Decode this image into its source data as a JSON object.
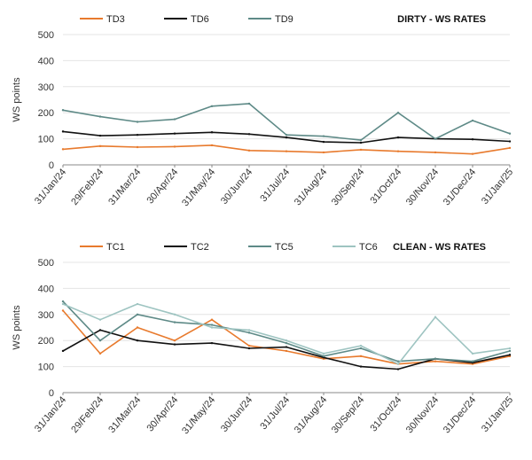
{
  "chart_data": [
    {
      "type": "line",
      "title": "DIRTY - WS RATES",
      "ylabel": "WS points",
      "ylim": [
        0,
        500
      ],
      "yticks": [
        0,
        100,
        200,
        300,
        400,
        500
      ],
      "grid": true,
      "legend_position": "top",
      "x_dates": [
        "31/Jan/24",
        "29/Feb/24",
        "31/Mar/24",
        "30/Apr/24",
        "31/May/24",
        "30/Jun/24",
        "31/Jul/24",
        "31/Aug/24",
        "30/Sep/24",
        "31/Oct/24",
        "30/Nov/24",
        "31/Dec/24",
        "31/Jan/25"
      ],
      "xtick_labels": [
        "31/Jan/24",
        "29/Feb/24",
        "31/Mar/24",
        "30/Apr/24",
        "31/May/24",
        "30/Jun/24",
        "31/Jul/24",
        "31/Aug/24",
        "30/Sep/24",
        "31/Oct/24",
        "30/Nov/24",
        "31/Dec/24",
        "31/Jan/25"
      ],
      "series": [
        {
          "name": "TD3",
          "color": "#e87a2d",
          "values": [
            60,
            72,
            68,
            70,
            75,
            55,
            52,
            48,
            58,
            52,
            48,
            42,
            65
          ]
        },
        {
          "name": "TD6",
          "color": "#111111",
          "values": [
            128,
            112,
            115,
            120,
            125,
            118,
            105,
            88,
            85,
            105,
            100,
            98,
            90
          ]
        },
        {
          "name": "TD9",
          "color": "#5e8a87",
          "values": [
            210,
            185,
            165,
            175,
            225,
            235,
            115,
            110,
            95,
            200,
            100,
            170,
            120
          ]
        }
      ]
    },
    {
      "type": "line",
      "title": "CLEAN - WS RATES",
      "ylabel": "WS points",
      "ylim": [
        0,
        500
      ],
      "yticks": [
        0,
        100,
        200,
        300,
        400,
        500
      ],
      "grid": true,
      "legend_position": "top",
      "x_dates": [
        "31/Jan/24",
        "29/Feb/24",
        "31/Mar/24",
        "30/Apr/24",
        "31/May/24",
        "30/Jun/24",
        "31/Jul/24",
        "31/Aug/24",
        "30/Sep/24",
        "31/Oct/24",
        "30/Nov/24",
        "31/Dec/24",
        "31/Jan/25"
      ],
      "xtick_labels": [
        "31/Jan/24",
        "29/Feb/24",
        "31/Mar/24",
        "30/Apr/24",
        "31/May/24",
        "30/Jun/24",
        "31/Jul/24",
        "31/Aug/24",
        "30/Sep/24",
        "31/Oct/24",
        "30/Nov/24",
        "31/Dec/24",
        "31/Jan/25"
      ],
      "series": [
        {
          "name": "TC1",
          "color": "#e87a2d",
          "values": [
            315,
            150,
            250,
            200,
            280,
            180,
            160,
            130,
            140,
            110,
            120,
            110,
            140
          ]
        },
        {
          "name": "TC2",
          "color": "#111111",
          "values": [
            160,
            240,
            200,
            185,
            190,
            170,
            175,
            135,
            100,
            90,
            130,
            115,
            145
          ]
        },
        {
          "name": "TC5",
          "color": "#5e8a87",
          "values": [
            350,
            200,
            300,
            270,
            260,
            230,
            190,
            140,
            170,
            120,
            130,
            120,
            160
          ]
        },
        {
          "name": "TC6",
          "color": "#9ec4c1",
          "values": [
            340,
            280,
            340,
            300,
            250,
            240,
            200,
            150,
            180,
            110,
            290,
            150,
            170
          ]
        }
      ]
    }
  ]
}
